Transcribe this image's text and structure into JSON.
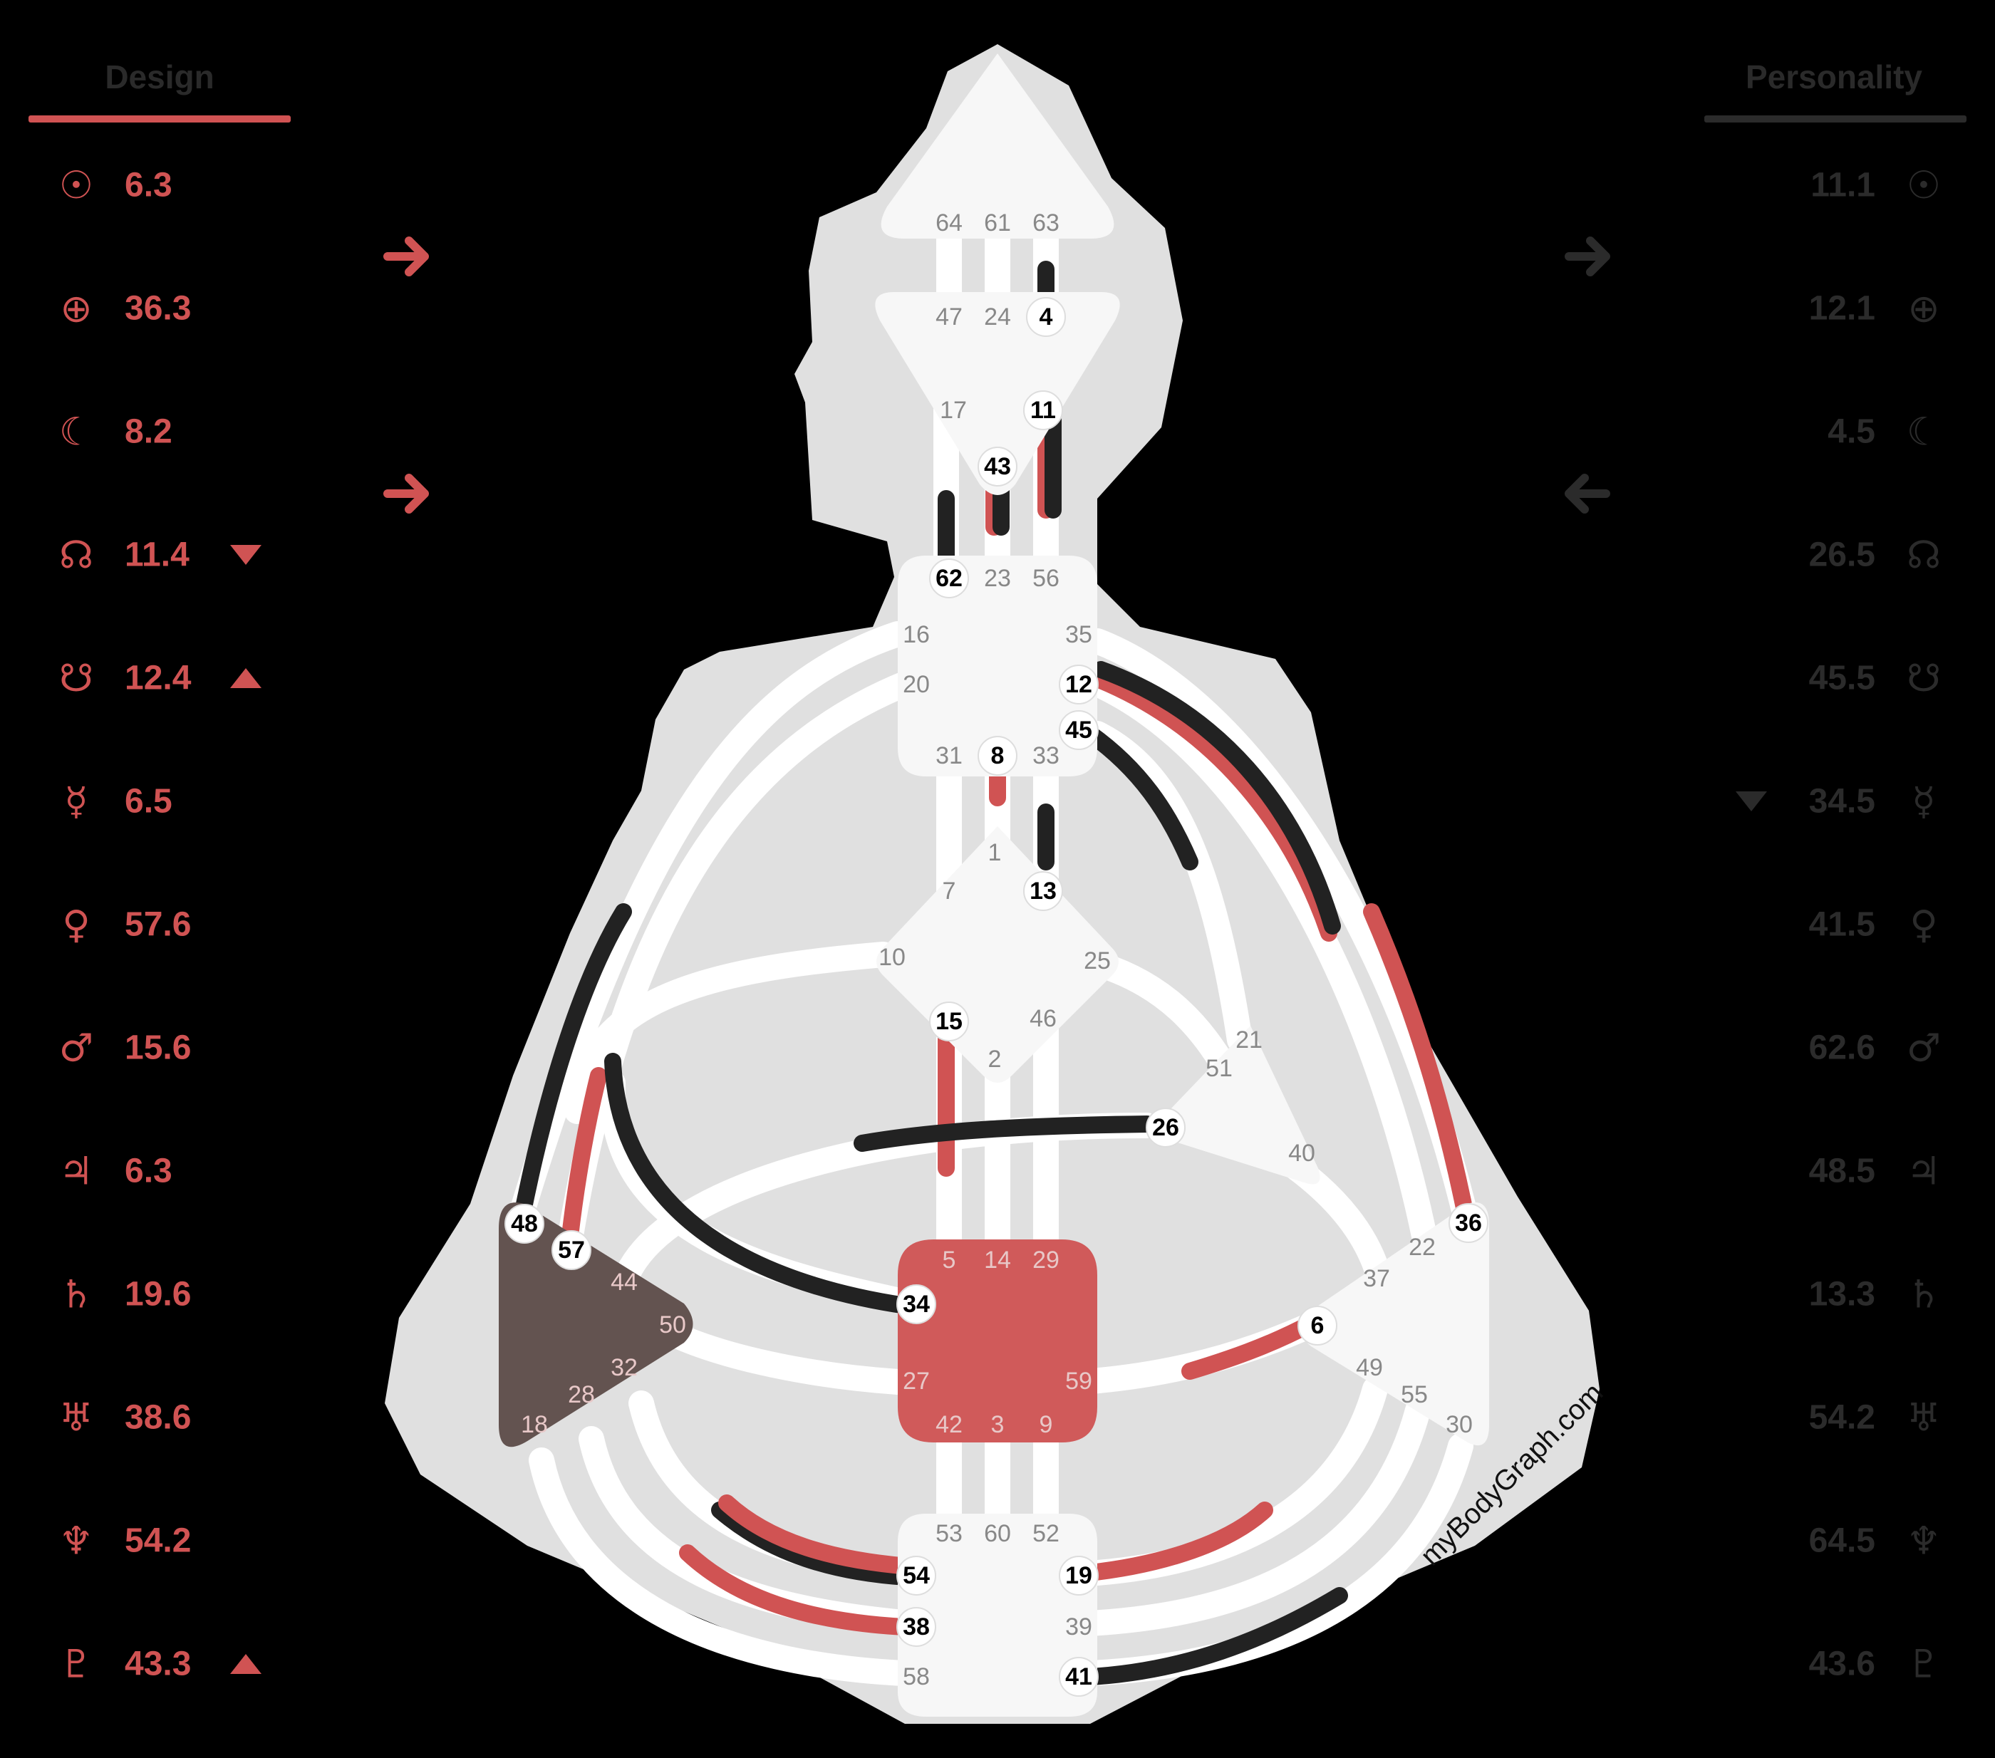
{
  "colors": {
    "background": "#000000",
    "silhouette": "#e0e0e0",
    "channel": "#ffffff",
    "center": "#f7f7f7",
    "design": "#d05353",
    "personality": "#222222",
    "sacral": "#d05a5a",
    "spleen": "#635350",
    "gate_text": "#888888",
    "gate_active_text": "#000000"
  },
  "design": {
    "title": "Design",
    "rows": [
      {
        "planet": "sun-icon",
        "glyph": "☉",
        "value": "6.3",
        "marker": ""
      },
      {
        "planet": "earth-icon",
        "glyph": "⊕",
        "value": "36.3",
        "marker": ""
      },
      {
        "planet": "moon-icon",
        "glyph": "☾",
        "value": "8.2",
        "marker": ""
      },
      {
        "planet": "north-node-icon",
        "glyph": "☊",
        "value": "11.4",
        "marker": "down"
      },
      {
        "planet": "south-node-icon",
        "glyph": "☋",
        "value": "12.4",
        "marker": "up"
      },
      {
        "planet": "mercury-icon",
        "glyph": "☿",
        "value": "6.5",
        "marker": ""
      },
      {
        "planet": "venus-icon",
        "glyph": "♀",
        "value": "57.6",
        "marker": ""
      },
      {
        "planet": "mars-icon",
        "glyph": "♂",
        "value": "15.6",
        "marker": ""
      },
      {
        "planet": "jupiter-icon",
        "glyph": "♃",
        "value": "6.3",
        "marker": ""
      },
      {
        "planet": "saturn-icon",
        "glyph": "♄",
        "value": "19.6",
        "marker": ""
      },
      {
        "planet": "uranus-icon",
        "glyph": "♅",
        "value": "38.6",
        "marker": ""
      },
      {
        "planet": "neptune-icon",
        "glyph": "♆",
        "value": "54.2",
        "marker": ""
      },
      {
        "planet": "pluto-icon",
        "glyph": "♇",
        "value": "43.3",
        "marker": "up"
      }
    ],
    "arrows": [
      "left",
      "left"
    ]
  },
  "personality": {
    "title": "Personality",
    "rows": [
      {
        "planet": "sun-icon",
        "glyph": "☉",
        "value": "11.1",
        "marker": ""
      },
      {
        "planet": "earth-icon",
        "glyph": "⊕",
        "value": "12.1",
        "marker": ""
      },
      {
        "planet": "moon-icon",
        "glyph": "☾",
        "value": "4.5",
        "marker": ""
      },
      {
        "planet": "north-node-icon",
        "glyph": "☊",
        "value": "26.5",
        "marker": ""
      },
      {
        "planet": "south-node-icon",
        "glyph": "☋",
        "value": "45.5",
        "marker": ""
      },
      {
        "planet": "mercury-icon",
        "glyph": "☿",
        "value": "34.5",
        "marker": "down"
      },
      {
        "planet": "venus-icon",
        "glyph": "♀",
        "value": "41.5",
        "marker": ""
      },
      {
        "planet": "mars-icon",
        "glyph": "♂",
        "value": "62.6",
        "marker": ""
      },
      {
        "planet": "jupiter-icon",
        "glyph": "♃",
        "value": "48.5",
        "marker": ""
      },
      {
        "planet": "saturn-icon",
        "glyph": "♄",
        "value": "13.3",
        "marker": ""
      },
      {
        "planet": "uranus-icon",
        "glyph": "♅",
        "value": "54.2",
        "marker": ""
      },
      {
        "planet": "neptune-icon",
        "glyph": "♆",
        "value": "64.5",
        "marker": ""
      },
      {
        "planet": "pluto-icon",
        "glyph": "♇",
        "value": "43.6",
        "marker": ""
      }
    ],
    "arrows": [
      "left",
      "right"
    ]
  },
  "gates": {
    "head": [
      "64",
      "61",
      "63"
    ],
    "ajna": [
      "47",
      "24",
      "4",
      "17",
      "11",
      "43"
    ],
    "throat": [
      "62",
      "23",
      "56",
      "16",
      "35",
      "20",
      "12",
      "45",
      "31",
      "8",
      "33"
    ],
    "g": [
      "1",
      "7",
      "13",
      "10",
      "25",
      "15",
      "46",
      "2"
    ],
    "ego": [
      "21",
      "51",
      "26",
      "40"
    ],
    "sacral": [
      "5",
      "14",
      "29",
      "34",
      "27",
      "59",
      "42",
      "3",
      "9"
    ],
    "spleen": [
      "48",
      "57",
      "44",
      "50",
      "32",
      "28",
      "18"
    ],
    "solar": [
      "36",
      "22",
      "37",
      "6",
      "49",
      "55",
      "30"
    ],
    "root": [
      "53",
      "60",
      "52",
      "54",
      "19",
      "38",
      "39",
      "58",
      "41"
    ]
  },
  "active_gates": [
    "4",
    "11",
    "43",
    "62",
    "12",
    "45",
    "8",
    "13",
    "15",
    "26",
    "34",
    "48",
    "57",
    "36",
    "6",
    "54",
    "19",
    "38",
    "41"
  ],
  "watermark": "myBodyGraph.com"
}
